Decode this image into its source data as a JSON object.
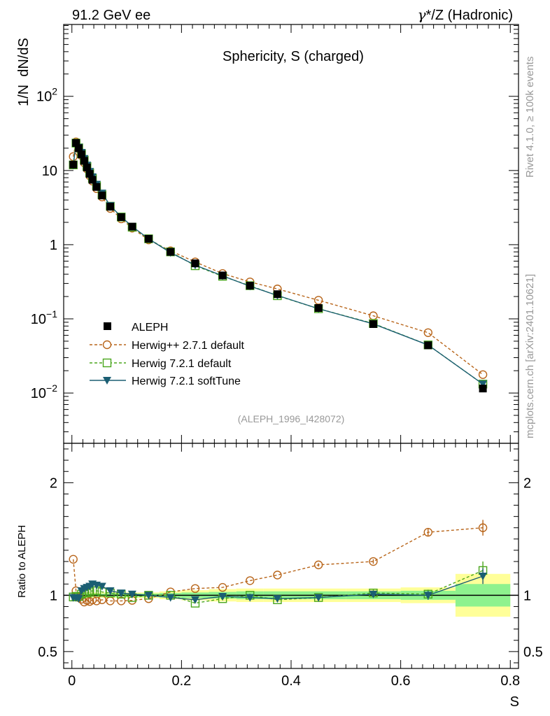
{
  "header": {
    "energy": "91.2 GeV ee",
    "process_symbol": "γ",
    "process_rest": "*/Z (Hadronic)"
  },
  "chart_data": {
    "type": "line",
    "title": "Sphericity, S (charged)",
    "analysis_id": "(ALEPH_1996_I428072)",
    "side_labels": [
      "Rivet 4.1.0, ≥ 100k events",
      "mcplots.cern.ch [arXiv:2401.10621]"
    ],
    "xlabel": "S",
    "ylabel_top": "1/N  dN/dS",
    "ylabel_bottom": "Ratio to ALEPH",
    "xlim": [
      -0.015,
      0.815
    ],
    "ylim_top": [
      0.0021,
      930
    ],
    "ylim_bottom": [
      0.35,
      2.35
    ],
    "x_ticks": [
      {
        "v": 0,
        "label": "0"
      },
      {
        "v": 0.2,
        "label": "0.2"
      },
      {
        "v": 0.4,
        "label": "0.4"
      },
      {
        "v": 0.6,
        "label": "0.6"
      },
      {
        "v": 0.8,
        "label": "0.8"
      }
    ],
    "y_ticks_top": [
      {
        "v": 0.01,
        "base": "10",
        "exp": "−2"
      },
      {
        "v": 0.1,
        "base": "10",
        "exp": "−1"
      },
      {
        "v": 1,
        "base": "1",
        "exp": ""
      },
      {
        "v": 10,
        "base": "10",
        "exp": ""
      },
      {
        "v": 100,
        "base": "10",
        "exp": "2"
      }
    ],
    "y_ticks_bottom": [
      {
        "v": 0.5,
        "label": "0.5"
      },
      {
        "v": 1,
        "label": "1"
      },
      {
        "v": 2,
        "label": "2"
      }
    ],
    "x": [
      0.0025,
      0.0075,
      0.0125,
      0.0175,
      0.0225,
      0.0275,
      0.0325,
      0.0375,
      0.045,
      0.055,
      0.07,
      0.09,
      0.11,
      0.14,
      0.18,
      0.225,
      0.275,
      0.325,
      0.375,
      0.45,
      0.55,
      0.65,
      0.75
    ],
    "bin_edges": [
      0,
      0.005,
      0.01,
      0.015,
      0.02,
      0.025,
      0.03,
      0.035,
      0.04,
      0.05,
      0.06,
      0.08,
      0.1,
      0.12,
      0.16,
      0.2,
      0.25,
      0.3,
      0.35,
      0.4,
      0.5,
      0.6,
      0.7,
      0.8
    ],
    "series": [
      {
        "name": "ALEPH",
        "color": "#000000",
        "marker": "square-filled",
        "line": "none",
        "values": [
          12,
          23.5,
          20,
          16.5,
          13.5,
          11,
          9,
          7.5,
          6,
          4.6,
          3.25,
          2.35,
          1.75,
          1.2,
          0.8,
          0.56,
          0.385,
          0.28,
          0.215,
          0.14,
          0.085,
          0.044,
          0.0115
        ],
        "band_inner": [
          0.02,
          0.015,
          0.015,
          0.015,
          0.015,
          0.015,
          0.015,
          0.015,
          0.015,
          0.015,
          0.015,
          0.015,
          0.015,
          0.015,
          0.02,
          0.025,
          0.03,
          0.035,
          0.035,
          0.035,
          0.035,
          0.04,
          0.1
        ],
        "band_outer": [
          0.03,
          0.025,
          0.025,
          0.025,
          0.025,
          0.025,
          0.025,
          0.025,
          0.025,
          0.025,
          0.025,
          0.025,
          0.025,
          0.025,
          0.035,
          0.045,
          0.055,
          0.06,
          0.06,
          0.06,
          0.06,
          0.07,
          0.19
        ]
      },
      {
        "name": "Herwig++ 2.7.1 default",
        "color": "#b8651a",
        "marker": "circle-open",
        "line": "dashed",
        "values": [
          15.4,
          24.3,
          19.6,
          15.9,
          12.7,
          10.5,
          8.5,
          7.2,
          5.7,
          4.4,
          3.08,
          2.23,
          1.67,
          1.16,
          0.826,
          0.585,
          0.408,
          0.315,
          0.253,
          0.178,
          0.11,
          0.0651,
          0.0177
        ],
        "ratio": [
          1.32,
          1.04,
          0.98,
          0.965,
          0.94,
          0.955,
          0.945,
          0.96,
          0.95,
          0.96,
          0.95,
          0.95,
          0.955,
          0.97,
          1.03,
          1.06,
          1.07,
          1.13,
          1.18,
          1.27,
          1.3,
          1.56,
          1.6
        ],
        "ratio_err": [
          0.01,
          0.01,
          0.01,
          0.01,
          0.01,
          0.01,
          0.01,
          0.01,
          0.01,
          0.01,
          0.01,
          0.01,
          0.01,
          0.01,
          0.01,
          0.01,
          0.01,
          0.01,
          0.01,
          0.015,
          0.02,
          0.035,
          0.07
        ]
      },
      {
        "name": "Herwig 7.2.1 default",
        "color": "#4aa61c",
        "marker": "square-open",
        "line": "dashed",
        "values": [
          11.9,
          23.4,
          20.2,
          16.8,
          13.8,
          11.3,
          9.3,
          7.8,
          6.2,
          4.7,
          3.3,
          2.36,
          1.72,
          1.2,
          0.8,
          0.52,
          0.375,
          0.28,
          0.205,
          0.137,
          0.0866,
          0.0445,
          0.0132
        ],
        "ratio": [
          0.985,
          0.99,
          0.99,
          1.01,
          1.02,
          1.02,
          1.03,
          1.04,
          1.04,
          1.03,
          1.02,
          1.01,
          0.98,
          1,
          1,
          0.93,
          0.97,
          1,
          0.96,
          0.98,
          1.02,
          1.01,
          1.22
        ],
        "ratio_err": [
          0.01,
          0.01,
          0.01,
          0.01,
          0.01,
          0.01,
          0.01,
          0.01,
          0.01,
          0.01,
          0.01,
          0.01,
          0.01,
          0.01,
          0.01,
          0.01,
          0.015,
          0.015,
          0.015,
          0.02,
          0.03,
          0.04,
          0.08
        ]
      },
      {
        "name": "Herwig 7.2.1 softTune",
        "color": "#1b5e73",
        "marker": "triangle-down-filled",
        "line": "solid",
        "values": [
          11.8,
          23,
          20.5,
          17.5,
          14.5,
          11.8,
          9.7,
          8.2,
          6.5,
          4.95,
          3.36,
          2.38,
          1.76,
          1.2,
          0.78,
          0.53,
          0.38,
          0.275,
          0.207,
          0.137,
          0.0855,
          0.0444,
          0.0132
        ],
        "ratio": [
          0.98,
          0.98,
          0.97,
          1.04,
          1.06,
          1.07,
          1.08,
          1.1,
          1.09,
          1.08,
          1.04,
          1.02,
          1.01,
          1,
          0.98,
          0.96,
          0.99,
          0.98,
          0.97,
          0.98,
          1.01,
          1,
          1.17
        ],
        "ratio_err": [
          0.01,
          0.01,
          0.01,
          0.01,
          0.01,
          0.01,
          0.01,
          0.01,
          0.01,
          0.01,
          0.01,
          0.01,
          0.01,
          0.01,
          0.01,
          0.015,
          0.015,
          0.02,
          0.025,
          0.025,
          0.03,
          0.04,
          0.07
        ]
      }
    ]
  }
}
